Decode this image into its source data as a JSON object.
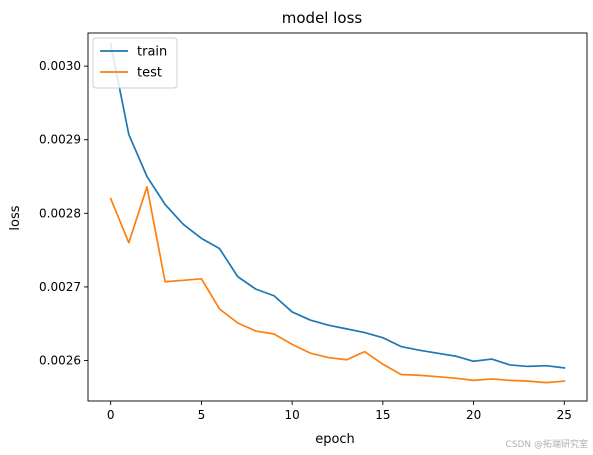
{
  "chart_data": {
    "type": "line",
    "title": "model loss",
    "xlabel": "epoch",
    "ylabel": "loss",
    "xlim": [
      -1.25,
      26.25
    ],
    "ylim": [
      0.002545,
      0.003045
    ],
    "xticks": [
      0,
      5,
      10,
      15,
      20,
      25
    ],
    "xtick_labels": [
      "0",
      "5",
      "10",
      "15",
      "20",
      "25"
    ],
    "yticks": [
      0.0026,
      0.0027,
      0.0028,
      0.0029,
      0.003
    ],
    "ytick_labels": [
      "0.0026",
      "0.0027",
      "0.0028",
      "0.0029",
      "0.0030"
    ],
    "grid": false,
    "legend_position": "top-left",
    "x": [
      0,
      1,
      2,
      3,
      4,
      5,
      6,
      7,
      8,
      9,
      10,
      11,
      12,
      13,
      14,
      15,
      16,
      17,
      18,
      19,
      20,
      21,
      22,
      23,
      24,
      25
    ],
    "series": [
      {
        "name": "train",
        "color": "#1f77b4",
        "values": [
          0.00303,
          0.002907,
          0.00285,
          0.002812,
          0.002785,
          0.002766,
          0.002752,
          0.002714,
          0.002697,
          0.002688,
          0.002666,
          0.002655,
          0.002648,
          0.002643,
          0.002638,
          0.002631,
          0.002619,
          0.002614,
          0.00261,
          0.002606,
          0.002599,
          0.002602,
          0.002594,
          0.002592,
          0.002593,
          0.00259
        ]
      },
      {
        "name": "test",
        "color": "#ff7f0e",
        "values": [
          0.00282,
          0.00276,
          0.002836,
          0.002707,
          0.002709,
          0.002711,
          0.00267,
          0.002651,
          0.00264,
          0.002636,
          0.002622,
          0.00261,
          0.002604,
          0.002601,
          0.002612,
          0.002595,
          0.002581,
          0.00258,
          0.002578,
          0.002576,
          0.002573,
          0.002575,
          0.002573,
          0.002572,
          0.00257,
          0.002572
        ]
      }
    ]
  },
  "watermark": "CSDN @拓端研究室"
}
